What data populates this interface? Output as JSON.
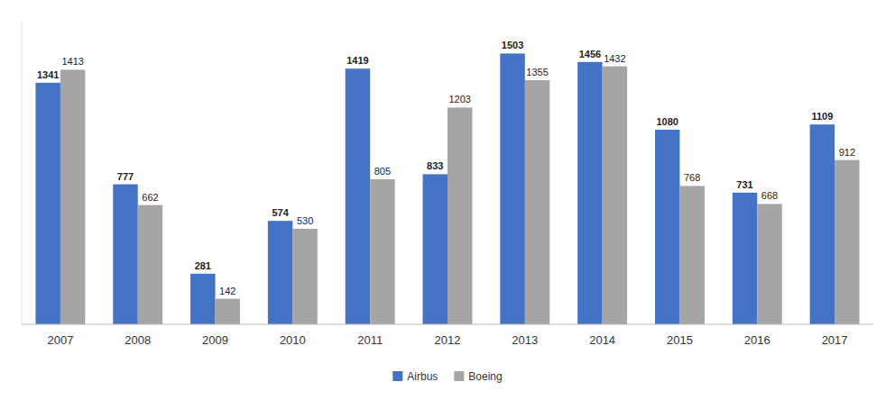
{
  "chart_data": {
    "type": "bar",
    "categories": [
      "2007",
      "2008",
      "2009",
      "2010",
      "2011",
      "2012",
      "2013",
      "2014",
      "2015",
      "2016",
      "2017"
    ],
    "series": [
      {
        "name": "Airbus",
        "color": "#4472C4",
        "values": [
          1341,
          777,
          281,
          574,
          1419,
          833,
          1503,
          1456,
          1080,
          731,
          1109
        ]
      },
      {
        "name": "Boeing",
        "color": "#A5A5A5",
        "values": [
          1413,
          662,
          142,
          530,
          805,
          1203,
          1355,
          1432,
          768,
          668,
          912
        ]
      }
    ],
    "ylim": [
      0,
      1680
    ],
    "grid": false,
    "legend": "bottom",
    "data_labels": true,
    "tick_labels": "x"
  }
}
